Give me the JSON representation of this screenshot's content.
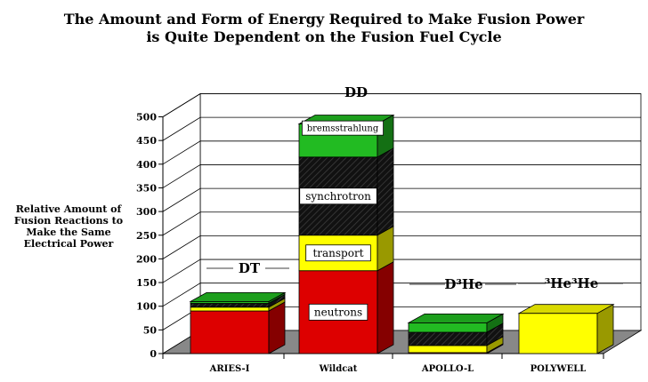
{
  "title_line1": "The Amount and Form of Energy Required to Make Fusion Power",
  "title_line2": "is Quite Dependent on the Fusion Fuel Cycle",
  "ylabel_lines": [
    "Relative Amount of",
    "Fusion Reactions to",
    "Make the Same",
    "Electrical Power"
  ],
  "colors": {
    "neutrons": "#dd0000",
    "transport": "#ffff00",
    "synchrotron": "#111111",
    "bremsstrahlung": "#22bb22",
    "floor": "#888888"
  },
  "chart_data": {
    "type": "bar",
    "stacked": true,
    "categories": [
      "ARIES-I",
      "Wildcat",
      "APOLLO-L",
      "POLYWELL"
    ],
    "fuel_cycles": [
      "DT",
      "DD",
      "D³He",
      "³He³He"
    ],
    "ylim": [
      0,
      500
    ],
    "yticks": [
      0,
      50,
      100,
      150,
      200,
      250,
      300,
      350,
      400,
      450,
      500
    ],
    "ylabel": "Relative Amount of Fusion Reactions to Make the Same Electrical Power",
    "grid": true,
    "series": [
      {
        "name": "neutrons",
        "values": [
          90,
          175,
          2,
          0
        ]
      },
      {
        "name": "transport",
        "values": [
          8,
          75,
          15,
          85
        ]
      },
      {
        "name": "synchrotron",
        "values": [
          8,
          165,
          28,
          0
        ]
      },
      {
        "name": "bremsstrahlung",
        "values": [
          4,
          70,
          20,
          0
        ]
      }
    ]
  }
}
